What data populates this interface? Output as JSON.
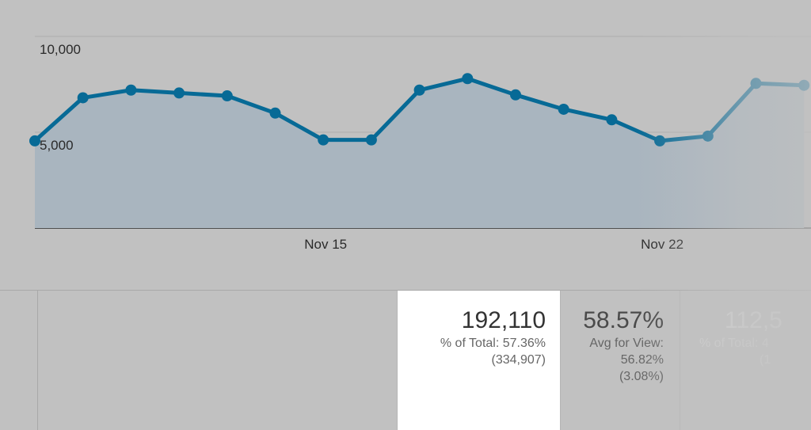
{
  "chart_data": {
    "type": "area",
    "x": [
      "Nov 9",
      "Nov 10",
      "Nov 11",
      "Nov 12",
      "Nov 13",
      "Nov 14",
      "Nov 15",
      "Nov 16",
      "Nov 17",
      "Nov 18",
      "Nov 19",
      "Nov 20",
      "Nov 21",
      "Nov 22",
      "Nov 23",
      "Nov 24",
      "Nov 25"
    ],
    "series": [
      {
        "values": [
          4550,
          6800,
          7200,
          7050,
          6900,
          6000,
          4600,
          4600,
          7200,
          7800,
          6950,
          6200,
          5650,
          4550,
          4800,
          7550,
          7450
        ],
        "color": "#076a96",
        "fill_color": "#a9b5bf"
      }
    ],
    "y_ticks": [
      "10,000",
      "5,000"
    ],
    "y_tick_values": [
      10000,
      5000
    ],
    "x_ticks": [
      "Nov 15",
      "Nov 22"
    ],
    "x_tick_dates": [
      "Nov 15",
      "Nov 22"
    ],
    "ylim": [
      0,
      10000
    ],
    "grid": true,
    "title": "",
    "xlabel": "",
    "ylabel": ""
  },
  "table": {
    "columns": [
      {
        "value": "192,110",
        "sub_lines": [
          "% of Total: 57.36%",
          "(334,907)"
        ],
        "highlighted": true
      },
      {
        "value": "58.57%",
        "sub_lines": [
          "Avg for View:",
          "56.82%",
          "(3.08%)"
        ],
        "highlighted": false
      },
      {
        "value": "112,5",
        "sub_lines": [
          "% of Total: 4",
          "(1"
        ],
        "highlighted": false
      }
    ]
  },
  "colors": {
    "background": "#c1c1c1",
    "line": "#076a96",
    "highlight_cell": "#ffffff"
  }
}
